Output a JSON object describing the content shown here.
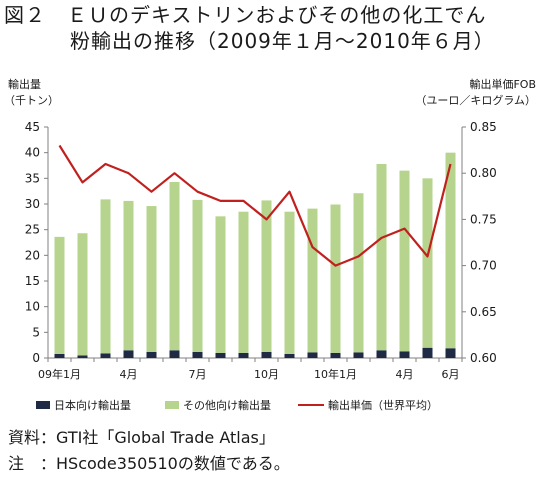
{
  "figure": {
    "title_line1": "図２　ＥＵのデキストリンおよびその他の化工でん",
    "title_line2": "粉輸出の推移（2009年１月～2010年６月）",
    "source_note": "資料：GTI社「Global Trade Atlas」",
    "note": "注　：HScode350510の数値である。"
  },
  "chart_data": {
    "type": "bar",
    "y_left_label_line1": "輸出量",
    "y_left_label_line2": "（千トン）",
    "y_right_label_line1": "輸出単価FOB",
    "y_right_label_line2": "（ユーロ／キログラム）",
    "categories": [
      "2009-01",
      "2009-02",
      "2009-03",
      "2009-04",
      "2009-05",
      "2009-06",
      "2009-07",
      "2009-08",
      "2009-09",
      "2009-10",
      "2009-11",
      "2009-12",
      "2010-01",
      "2010-02",
      "2010-03",
      "2010-04",
      "2010-05",
      "2010-06"
    ],
    "x_tick_labels": [
      {
        "index": 0,
        "label": "09年1月"
      },
      {
        "index": 3,
        "label": "4月"
      },
      {
        "index": 6,
        "label": "7月"
      },
      {
        "index": 9,
        "label": "10月"
      },
      {
        "index": 12,
        "label": "10年1月"
      },
      {
        "index": 15,
        "label": "4月"
      },
      {
        "index": 17,
        "label": "6月"
      }
    ],
    "ylim_left": [
      0,
      45
    ],
    "yticks_left": [
      0,
      5,
      10,
      15,
      20,
      25,
      30,
      35,
      40,
      45
    ],
    "ylim_right": [
      0.6,
      0.85
    ],
    "yticks_right": [
      "0.60",
      "0.65",
      "0.70",
      "0.75",
      "0.80",
      "0.85"
    ],
    "series": [
      {
        "name": "日本向け輸出量",
        "kind": "bar-stack",
        "axis": "left",
        "color": "#1f2a44",
        "values": [
          0.8,
          0.5,
          0.9,
          1.5,
          1.2,
          1.5,
          1.2,
          1.0,
          1.0,
          1.2,
          0.8,
          1.1,
          1.0,
          1.1,
          1.5,
          1.3,
          2.0,
          1.9
        ]
      },
      {
        "name": "その他向け輸出量",
        "kind": "bar-stack",
        "axis": "left",
        "color": "#b6d48d",
        "values": [
          22.8,
          23.8,
          30.0,
          29.1,
          28.4,
          32.8,
          29.6,
          26.6,
          27.5,
          29.5,
          27.7,
          28.0,
          28.9,
          31.0,
          36.3,
          35.2,
          33.0,
          38.1
        ]
      },
      {
        "name": "輸出単価（世界平均）",
        "kind": "line",
        "axis": "right",
        "color": "#c0211f",
        "values": [
          0.83,
          0.79,
          0.81,
          0.8,
          0.78,
          0.8,
          0.78,
          0.77,
          0.77,
          0.75,
          0.78,
          0.72,
          0.7,
          0.71,
          0.73,
          0.74,
          0.71,
          0.81
        ]
      }
    ],
    "legend_position": "bottom",
    "grid": false
  }
}
